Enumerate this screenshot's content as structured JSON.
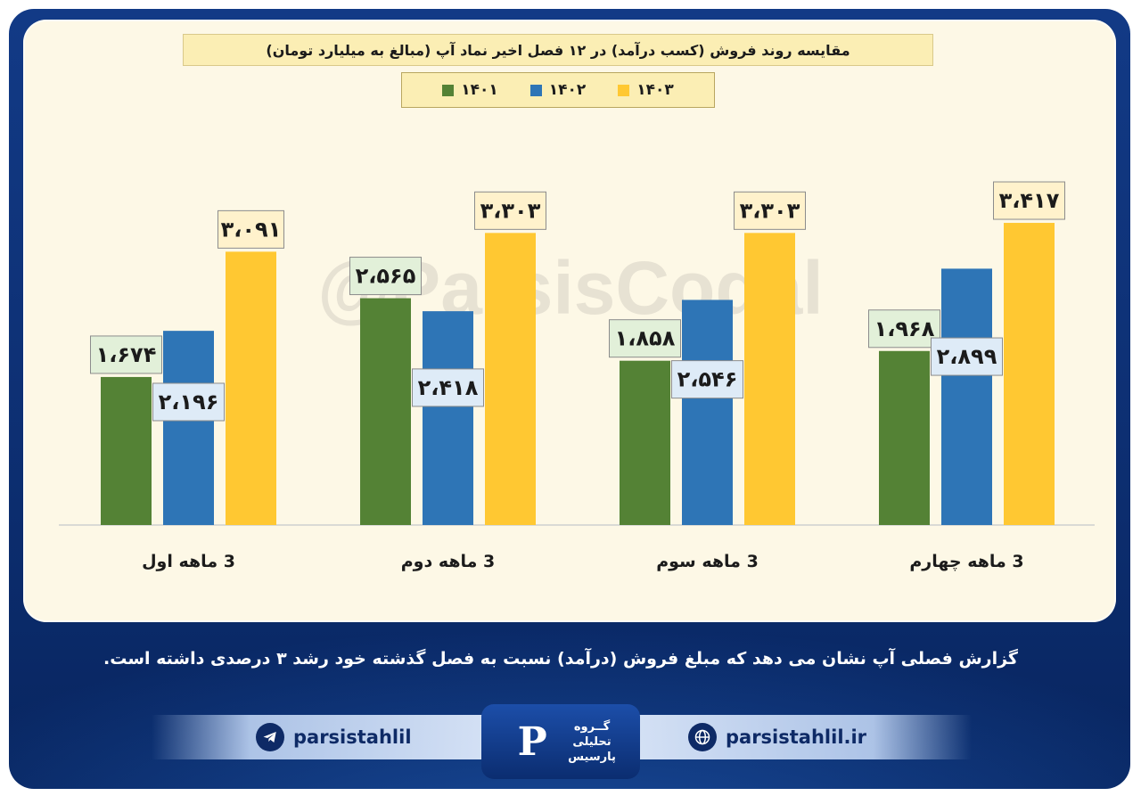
{
  "chart_data": {
    "type": "bar",
    "title": "مقایسه روند فروش (کسب درآمد) در ۱۲ فصل اخیر نماد آپ (مبالغ به میلیارد تومان)",
    "categories": [
      "3 ماهه اول",
      "3 ماهه دوم",
      "3 ماهه سوم",
      "3 ماهه چهارم"
    ],
    "series": [
      {
        "name": "۱۴۰۱",
        "color": "#548235",
        "values": [
          1674,
          2565,
          1858,
          1968
        ],
        "labels": [
          "۱،۶۷۴",
          "۲،۵۶۵",
          "۱،۸۵۸",
          "۱،۹۶۸"
        ]
      },
      {
        "name": "۱۴۰۲",
        "color": "#2e75b6",
        "values": [
          2196,
          2418,
          2546,
          2899
        ],
        "labels": [
          "۲،۱۹۶",
          "۲،۴۱۸",
          "۲،۵۴۶",
          "۲،۸۹۹"
        ]
      },
      {
        "name": "۱۴۰۳",
        "color": "#ffc832",
        "values": [
          3091,
          3303,
          3303,
          3417
        ],
        "labels": [
          "۳،۰۹۱",
          "۳،۳۰۳",
          "۳،۳۰۳",
          "۳،۴۱۷"
        ]
      }
    ],
    "xlabel": "",
    "ylabel": "",
    "ylim": [
      0,
      3800
    ],
    "grid": false,
    "legend": "top-center"
  },
  "watermark": "@ParsisCodal",
  "caption": "گزارش فصلی آپ نشان می دهد که مبلغ فروش (درآمد) نسبت به فصل گذشته خود رشد ۳ درصدی داشته است.",
  "footer": {
    "telegram_handle": "parsistahlil",
    "website": "parsistahlil.ir",
    "telegram_icon": "telegram-icon",
    "web_icon": "globe-icon",
    "logo_lines": [
      "گــروه",
      "تحلیلی",
      "پارسیس"
    ]
  }
}
